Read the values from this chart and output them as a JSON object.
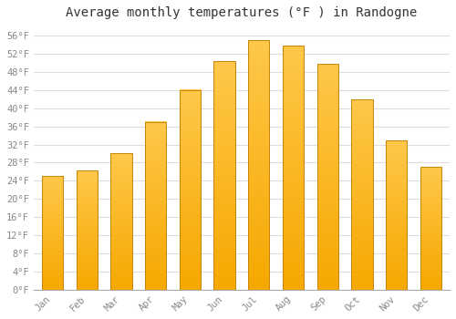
{
  "months": [
    "Jan",
    "Feb",
    "Mar",
    "Apr",
    "May",
    "Jun",
    "Jul",
    "Aug",
    "Sep",
    "Oct",
    "Nov",
    "Dec"
  ],
  "values": [
    25.0,
    26.3,
    30.0,
    37.0,
    44.0,
    50.3,
    55.0,
    53.8,
    49.8,
    41.9,
    32.9,
    27.0
  ],
  "bar_color_top": "#FFC84A",
  "bar_color_bottom": "#F5A800",
  "bar_edge_color": "#C8840A",
  "title": "Average monthly temperatures (°F ) in Randogne",
  "ylim": [
    0,
    58
  ],
  "ytick_step": 4,
  "background_color": "#ffffff",
  "grid_color": "#dddddd",
  "title_fontsize": 10,
  "tick_fontsize": 7.5,
  "font_family": "monospace",
  "tick_color": "#888888"
}
